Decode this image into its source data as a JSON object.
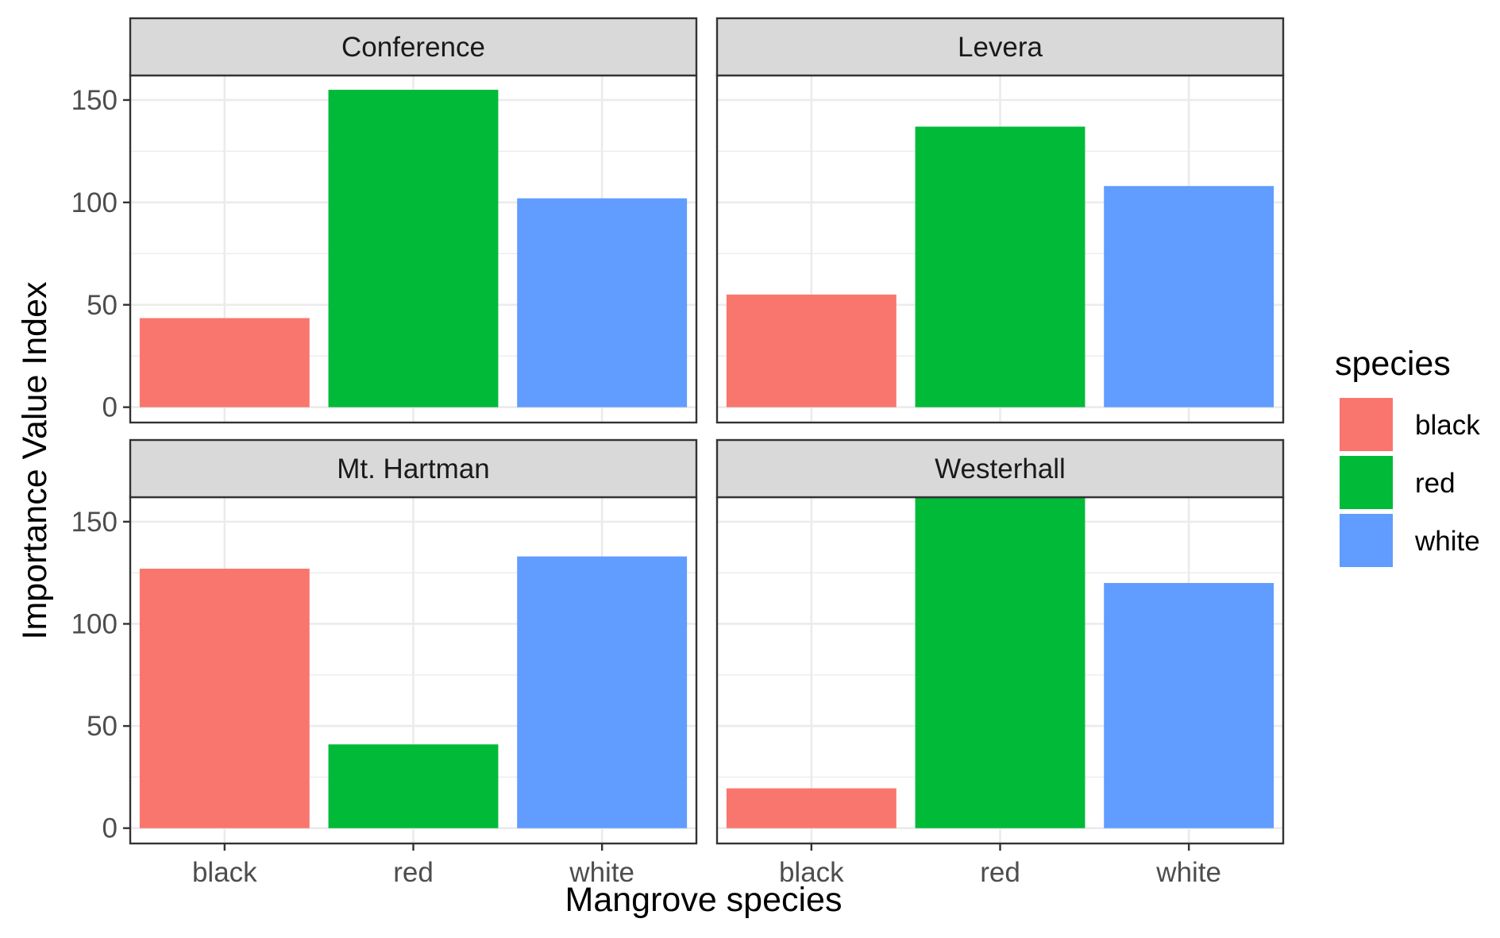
{
  "chart_data": {
    "type": "bar",
    "facet_layout": "2x2",
    "xlabel": "Mangrove species",
    "ylabel": "Importance Value Index",
    "ylim": [
      -7.5,
      162
    ],
    "yticks": [
      0,
      50,
      100,
      150
    ],
    "categories": [
      "black",
      "red",
      "white"
    ],
    "colors": {
      "black": "#F8766D",
      "red": "#00BA38",
      "white": "#619CFF"
    },
    "grid": true,
    "legend": {
      "title": "species",
      "position": "right",
      "items": [
        "black",
        "red",
        "white"
      ]
    },
    "panels": [
      {
        "title": "Conference",
        "values": [
          43.5,
          155,
          102
        ]
      },
      {
        "title": "Levera",
        "values": [
          55,
          137,
          108
        ]
      },
      {
        "title": "Mt. Hartman",
        "values": [
          127,
          41,
          133
        ]
      },
      {
        "title": "Westerhall",
        "values": [
          19.5,
          162,
          120
        ]
      }
    ]
  }
}
